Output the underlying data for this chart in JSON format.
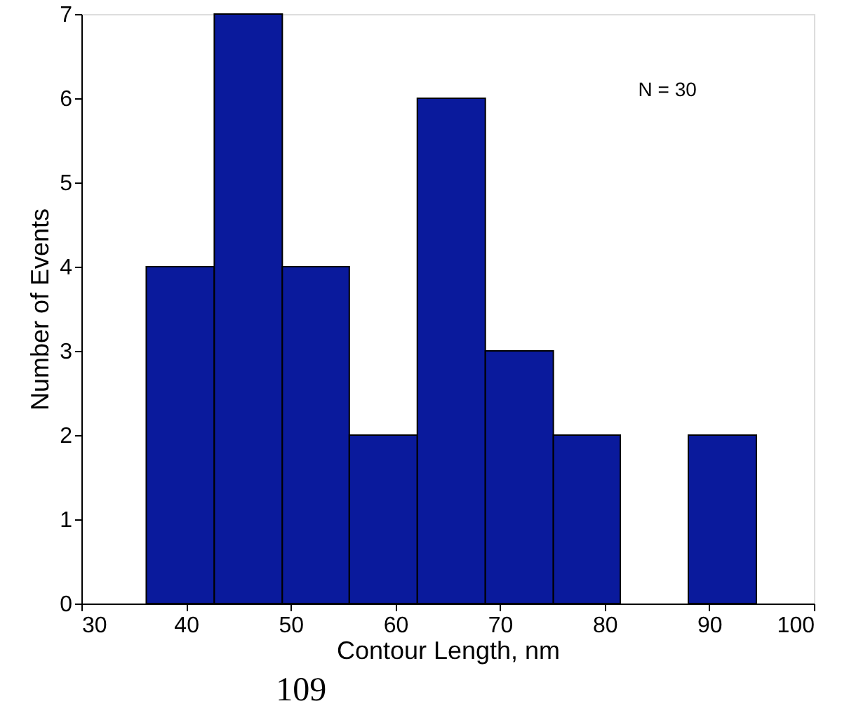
{
  "chart_data": {
    "type": "histogram",
    "xlabel": "Contour Length, nm",
    "ylabel": "Number of Events",
    "bins": [
      36.2,
      42.7,
      49.2,
      55.6,
      62.1,
      68.6,
      75.1,
      81.5,
      88.0,
      94.5
    ],
    "values": [
      4,
      7,
      4,
      2,
      6,
      3,
      2,
      0,
      2
    ],
    "color": "#0a1a9c",
    "xlim": [
      30,
      100
    ],
    "xticks": [
      30,
      40,
      50,
      60,
      70,
      80,
      90,
      100
    ],
    "ylim": [
      0,
      7
    ],
    "yticks": [
      0,
      1,
      2,
      3,
      4,
      5,
      6,
      7
    ],
    "grid": false,
    "annotations": [
      "N = 30",
      "109"
    ]
  }
}
